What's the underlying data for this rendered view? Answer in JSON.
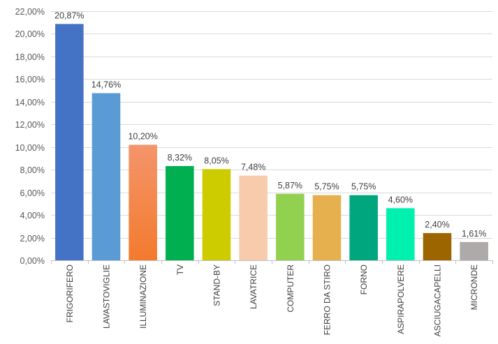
{
  "chart_data": {
    "type": "bar",
    "title": "",
    "xlabel": "",
    "ylabel": "",
    "ylim": [
      0,
      22
    ],
    "ytick_step": 2,
    "yticks": [
      "0,00%",
      "2,00%",
      "4,00%",
      "6,00%",
      "8,00%",
      "10,00%",
      "12,00%",
      "14,00%",
      "16,00%",
      "18,00%",
      "20,00%",
      "22,00%"
    ],
    "grid": true,
    "legend": "none",
    "categories": [
      "FRIGORIFERO",
      "LAVASTOVIGLIE",
      "ILLUMINAZIONE",
      "TV",
      "STAND-BY",
      "LAVATRICE",
      "COMPUTER",
      "FERRO DA STIRO",
      "FORNO",
      "ASPIRAPOLVERE",
      "ASCIUGACAPELLI",
      "MICRONDE"
    ],
    "values": [
      20.87,
      14.76,
      10.2,
      8.32,
      8.05,
      7.48,
      5.87,
      5.75,
      5.75,
      4.6,
      2.4,
      1.61
    ],
    "data_labels": [
      "20,87%",
      "14,76%",
      "10,20%",
      "8,32%",
      "8,05%",
      "7,48%",
      "5,87%",
      "5,75%",
      "5,75%",
      "4,60%",
      "2,40%",
      "1,61%"
    ],
    "colors": [
      [
        "#4472c4",
        "#4472c4"
      ],
      [
        "#5b9bd5",
        "#5b9bd5"
      ],
      [
        "#f4956a",
        "#f37a2e"
      ],
      [
        "#00b050",
        "#00b050"
      ],
      [
        "#cccc00",
        "#cccc00"
      ],
      [
        "#f8cbad",
        "#f8cbad"
      ],
      [
        "#92d050",
        "#92d050"
      ],
      [
        "#e6b04f",
        "#e6b04f"
      ],
      [
        "#00a67e",
        "#00a67e"
      ],
      [
        "#00f0b0",
        "#00f0b0"
      ],
      [
        "#9c6500",
        "#9c6500"
      ],
      [
        "#aeaaaa",
        "#aeaaaa"
      ]
    ]
  }
}
